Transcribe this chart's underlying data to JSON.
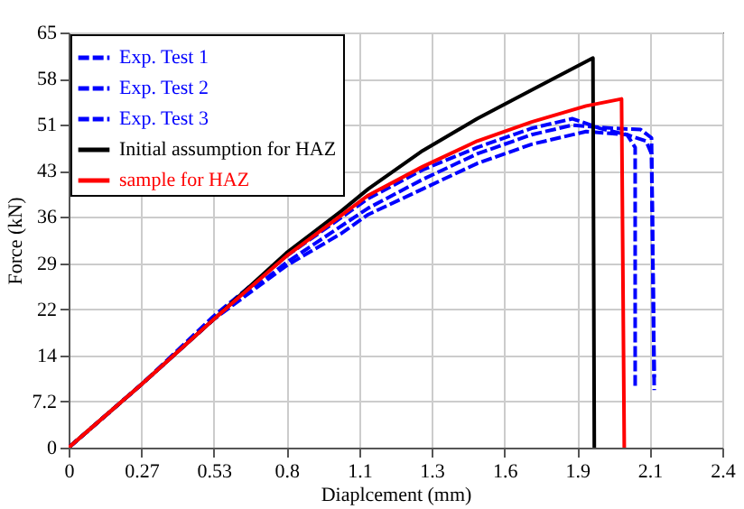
{
  "chart_data": {
    "type": "line",
    "xlabel": "Diaplcement (mm)",
    "ylabel": "Force (kN)",
    "xlim": [
      0,
      2.4
    ],
    "ylim": [
      0,
      65
    ],
    "xticks": [
      0,
      {
        "value": 0.267,
        "label": "0.27"
      },
      {
        "value": 0.533,
        "label": "0.53"
      },
      0.8,
      {
        "value": 1.067,
        "label": "1.1"
      },
      {
        "value": 1.333,
        "label": "1.3"
      },
      1.6,
      {
        "value": 1.867,
        "label": "1.9"
      },
      {
        "value": 2.133,
        "label": "2.1"
      },
      2.4
    ],
    "yticks": [
      0,
      {
        "value": 7.22,
        "label": "7.2"
      },
      {
        "value": 14.44,
        "label": "14"
      },
      {
        "value": 21.67,
        "label": "22"
      },
      {
        "value": 28.89,
        "label": "29"
      },
      {
        "value": 36.11,
        "label": "36"
      },
      {
        "value": 43.33,
        "label": "43"
      },
      {
        "value": 50.56,
        "label": "51"
      },
      {
        "value": 57.78,
        "label": "58"
      },
      65
    ],
    "grid": true,
    "legend": "top left",
    "series": [
      {
        "name": "Exp. Test 1",
        "color": "#0000ff",
        "line_style": "dashed",
        "x": [
          0,
          0.27,
          0.53,
          0.8,
          1.1,
          1.3,
          1.5,
          1.7,
          1.85,
          1.95,
          2.05,
          2.08,
          2.08
        ],
        "values": [
          0,
          10,
          20.5,
          30,
          39,
          43.5,
          47,
          50,
          51.5,
          50,
          49,
          47,
          9.5
        ]
      },
      {
        "name": "Exp. Test 2",
        "color": "#0000ff",
        "line_style": "dashed",
        "x": [
          0,
          0.27,
          0.53,
          0.8,
          1.1,
          1.3,
          1.5,
          1.7,
          1.85,
          2.0,
          2.1,
          2.14,
          2.15
        ],
        "values": [
          0,
          10,
          20,
          29,
          37.5,
          42,
          46,
          49,
          50.5,
          50,
          49.8,
          48.5,
          9
        ]
      },
      {
        "name": "Exp. Test 3",
        "color": "#0000ff",
        "line_style": "dashed",
        "x": [
          0,
          0.27,
          0.53,
          0.8,
          1.0,
          1.1,
          1.3,
          1.5,
          1.7,
          1.9,
          2.05,
          2.12,
          2.14,
          2.15
        ],
        "values": [
          0,
          10,
          20,
          28.5,
          33.5,
          36.5,
          40.5,
          44.5,
          47.5,
          49.5,
          49,
          48,
          46,
          11
        ]
      },
      {
        "name": "Initial assumption for HAZ",
        "color": "#000000",
        "line_style": "solid",
        "x": [
          0,
          0.27,
          0.53,
          0.8,
          1.0,
          1.1,
          1.3,
          1.5,
          1.7,
          1.925,
          1.93
        ],
        "values": [
          0,
          10,
          20,
          30.5,
          37,
          40.5,
          46.5,
          51.5,
          56,
          61,
          0
        ]
      },
      {
        "name": "sample for HAZ",
        "color": "#ff0000",
        "line_style": "solid",
        "x": [
          0,
          0.27,
          0.53,
          0.8,
          1.1,
          1.3,
          1.5,
          1.7,
          1.9,
          2.03,
          2.04
        ],
        "values": [
          0,
          10,
          20,
          30,
          39.5,
          44,
          48,
          51,
          53.5,
          54.6,
          0
        ]
      }
    ]
  }
}
